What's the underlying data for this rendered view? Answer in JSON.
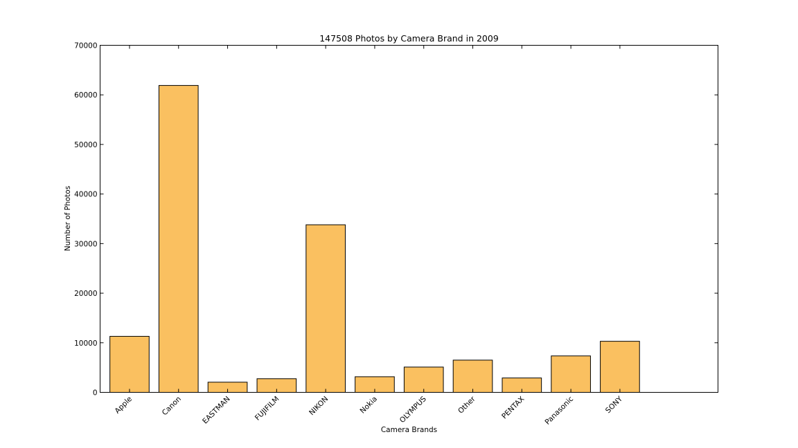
{
  "chart_data": {
    "type": "bar",
    "title": "147508 Photos by Camera Brand in 2009",
    "xlabel": "Camera Brands",
    "ylabel": "Number of Photos",
    "categories": [
      "Apple",
      "Canon",
      "EASTMAN",
      "FUJIFILM",
      "NIKON",
      "Nokia",
      "OLYMPUS",
      "Other",
      "PENTAX",
      "Panasonic",
      "SONY"
    ],
    "values": [
      11300,
      61900,
      2050,
      2750,
      33800,
      3150,
      5100,
      6500,
      2900,
      7350,
      10300
    ],
    "ylim": [
      0,
      70000
    ],
    "yticks": [
      0,
      10000,
      20000,
      30000,
      40000,
      50000,
      60000,
      70000
    ],
    "bar_color": "#fac060",
    "grid": false,
    "legend": "none"
  }
}
